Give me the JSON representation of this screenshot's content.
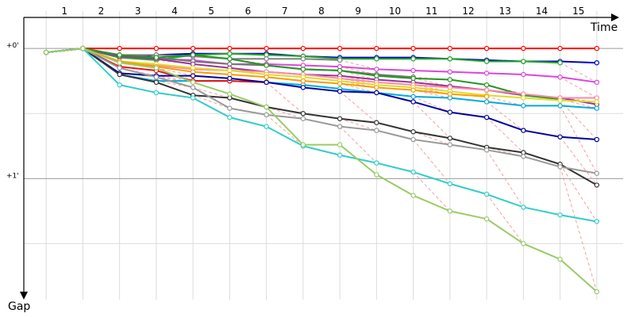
{
  "chart_data": {
    "type": "line",
    "xlabel": "Time",
    "ylabel": "Gap",
    "x_ticks": [
      "1",
      "2",
      "3",
      "4",
      "5",
      "6",
      "7",
      "8",
      "9",
      "10",
      "11",
      "12",
      "13",
      "14",
      "15"
    ],
    "y_tick_labels": [
      {
        "label": "+0'",
        "value": 0
      },
      {
        "label": "+1'",
        "value": 1
      }
    ],
    "xlim": [
      0.5,
      16.5
    ],
    "ylim": [
      -0.08,
      1.93
    ],
    "grid": true,
    "series": [
      {
        "color": "#ff0000",
        "points": [
          [
            1,
            0.03
          ],
          [
            2,
            0
          ],
          [
            3,
            0
          ],
          [
            4,
            0
          ],
          [
            5,
            0
          ],
          [
            6,
            0
          ],
          [
            7,
            0
          ],
          [
            8,
            0
          ],
          [
            9,
            0
          ],
          [
            10,
            0
          ],
          [
            11,
            0
          ],
          [
            12,
            0
          ],
          [
            13,
            0
          ],
          [
            14,
            0
          ],
          [
            15,
            0
          ],
          [
            16,
            0
          ]
        ]
      },
      {
        "color": "#0000cc",
        "points": [
          [
            1,
            0.03
          ],
          [
            2,
            0
          ],
          [
            3,
            0.07
          ],
          [
            4,
            0.05
          ],
          [
            5,
            0.04
          ],
          [
            6,
            0.04
          ],
          [
            7,
            0.04
          ],
          [
            8,
            0.06
          ],
          [
            9,
            0.07
          ],
          [
            10,
            0.07
          ],
          [
            11,
            0.07
          ],
          [
            12,
            0.08
          ],
          [
            13,
            0.09
          ],
          [
            14,
            0.1
          ],
          [
            15,
            0.1
          ],
          [
            16,
            0.11
          ]
        ]
      },
      {
        "color": "#22aa22",
        "points": [
          [
            1,
            0.03
          ],
          [
            2,
            0
          ],
          [
            3,
            0.07
          ],
          [
            4,
            0.09
          ],
          [
            5,
            0.05
          ],
          [
            6,
            0.04
          ],
          [
            7,
            0.05
          ],
          [
            8,
            0.06
          ],
          [
            9,
            0.08
          ],
          [
            10,
            0.08
          ],
          [
            11,
            0.08
          ],
          [
            12,
            0.08
          ],
          [
            13,
            0.1
          ],
          [
            14,
            0.1
          ],
          [
            15,
            0.11
          ]
        ]
      },
      {
        "color": "#808080",
        "points": [
          [
            1,
            0.03
          ],
          [
            2,
            0
          ],
          [
            3,
            0.05
          ],
          [
            4,
            0.05
          ],
          [
            5,
            0.06
          ],
          [
            6,
            0.08
          ],
          [
            7,
            0.08
          ],
          [
            8,
            0.08
          ],
          [
            9,
            0.09
          ]
        ]
      },
      {
        "color": "#dd44dd",
        "points": [
          [
            1,
            0.03
          ],
          [
            2,
            0
          ],
          [
            3,
            0.06
          ],
          [
            4,
            0.08
          ],
          [
            5,
            0.09
          ],
          [
            6,
            0.12
          ],
          [
            7,
            0.12
          ],
          [
            8,
            0.13
          ],
          [
            9,
            0.14
          ],
          [
            10,
            0.16
          ],
          [
            11,
            0.17
          ],
          [
            12,
            0.18
          ],
          [
            13,
            0.19
          ],
          [
            14,
            0.2
          ],
          [
            15,
            0.22
          ],
          [
            16,
            0.26
          ]
        ]
      },
      {
        "color": "#777777",
        "points": [
          [
            1,
            0.03
          ],
          [
            2,
            0
          ],
          [
            3,
            0.05
          ],
          [
            4,
            0.07
          ],
          [
            5,
            0.1
          ],
          [
            6,
            0.12
          ],
          [
            7,
            0.13
          ],
          [
            8,
            0.16
          ],
          [
            9,
            0.17
          ],
          [
            10,
            0.2
          ],
          [
            11,
            0.22
          ]
        ]
      },
      {
        "color": "#993399",
        "points": [
          [
            1,
            0.03
          ],
          [
            2,
            0
          ],
          [
            3,
            0.06
          ],
          [
            4,
            0.08
          ],
          [
            5,
            0.12
          ],
          [
            6,
            0.15
          ],
          [
            7,
            0.18
          ],
          [
            8,
            0.2
          ],
          [
            9,
            0.21
          ],
          [
            10,
            0.24
          ],
          [
            11,
            0.26
          ],
          [
            12,
            0.29
          ],
          [
            13,
            0.32
          ],
          [
            14,
            0.36
          ],
          [
            15,
            0.38
          ],
          [
            16,
            0.43
          ]
        ]
      },
      {
        "color": "#229922",
        "points": [
          [
            1,
            0.03
          ],
          [
            2,
            0
          ],
          [
            3,
            0.05
          ],
          [
            4,
            0.07
          ],
          [
            5,
            0.05
          ],
          [
            6,
            0.08
          ],
          [
            7,
            0.13
          ],
          [
            8,
            0.16
          ],
          [
            9,
            0.17
          ],
          [
            10,
            0.21
          ],
          [
            11,
            0.23
          ],
          [
            12,
            0.24
          ],
          [
            13,
            0.28
          ],
          [
            14,
            0.36
          ],
          [
            15,
            0.39
          ]
        ]
      },
      {
        "color": "#ff88aa",
        "points": [
          [
            1,
            0.03
          ],
          [
            2,
            0
          ],
          [
            3,
            0.1
          ],
          [
            4,
            0.13
          ],
          [
            5,
            0.16
          ],
          [
            6,
            0.17
          ],
          [
            7,
            0.18
          ],
          [
            8,
            0.2
          ],
          [
            9,
            0.23
          ],
          [
            10,
            0.26
          ],
          [
            11,
            0.28
          ],
          [
            12,
            0.3
          ],
          [
            13,
            0.32
          ],
          [
            14,
            0.35
          ],
          [
            15,
            0.38
          ],
          [
            16,
            0.38
          ]
        ]
      },
      {
        "color": "#00aadd",
        "points": [
          [
            1,
            0.03
          ],
          [
            2,
            0
          ],
          [
            3,
            0.2
          ],
          [
            4,
            0.25
          ],
          [
            5,
            0.25
          ],
          [
            6,
            0.25
          ],
          [
            7,
            0.26
          ],
          [
            8,
            0.28
          ],
          [
            9,
            0.31
          ],
          [
            10,
            0.34
          ],
          [
            11,
            0.37
          ],
          [
            12,
            0.38
          ],
          [
            13,
            0.41
          ],
          [
            14,
            0.44
          ],
          [
            15,
            0.44
          ],
          [
            16,
            0.46
          ]
        ]
      },
      {
        "color": "#dddd22",
        "points": [
          [
            1,
            0.03
          ],
          [
            2,
            0
          ],
          [
            3,
            0.1
          ],
          [
            4,
            0.12
          ],
          [
            5,
            0.15
          ],
          [
            6,
            0.17
          ],
          [
            7,
            0.2
          ],
          [
            8,
            0.22
          ],
          [
            9,
            0.25
          ],
          [
            10,
            0.28
          ],
          [
            11,
            0.3
          ],
          [
            12,
            0.33
          ],
          [
            13,
            0.36
          ],
          [
            14,
            0.38
          ],
          [
            15,
            0.4
          ],
          [
            16,
            0.41
          ]
        ]
      },
      {
        "color": "#ff9900",
        "points": [
          [
            1,
            0.03
          ],
          [
            2,
            0
          ],
          [
            3,
            0.1
          ],
          [
            4,
            0.14
          ],
          [
            5,
            0.18
          ],
          [
            6,
            0.2
          ],
          [
            7,
            0.22
          ],
          [
            8,
            0.25
          ],
          [
            9,
            0.27
          ],
          [
            10,
            0.3
          ],
          [
            11,
            0.32
          ],
          [
            12,
            0.35
          ],
          [
            13,
            0.37
          ]
        ]
      },
      {
        "color": "#ee1111",
        "points": [
          [
            1,
            0.03
          ],
          [
            2,
            0
          ],
          [
            3,
            0.14
          ],
          [
            4,
            0.17
          ],
          [
            5,
            0.25
          ],
          [
            6,
            0.25
          ],
          [
            7,
            0.26
          ]
        ]
      },
      {
        "color": "#000099",
        "points": [
          [
            1,
            0.03
          ],
          [
            2,
            0
          ],
          [
            3,
            0.19
          ],
          [
            4,
            0.21
          ],
          [
            5,
            0.21
          ],
          [
            6,
            0.23
          ],
          [
            7,
            0.26
          ],
          [
            8,
            0.3
          ],
          [
            9,
            0.33
          ],
          [
            10,
            0.34
          ],
          [
            11,
            0.41
          ],
          [
            12,
            0.49
          ],
          [
            13,
            0.53
          ],
          [
            14,
            0.63
          ],
          [
            15,
            0.68
          ],
          [
            16,
            0.7
          ]
        ]
      },
      {
        "color": "#333333",
        "points": [
          [
            1,
            0.03
          ],
          [
            2,
            0
          ],
          [
            3,
            0.2
          ],
          [
            4,
            0.26
          ],
          [
            5,
            0.36
          ],
          [
            6,
            0.38
          ],
          [
            7,
            0.45
          ],
          [
            8,
            0.5
          ],
          [
            9,
            0.54
          ],
          [
            10,
            0.57
          ],
          [
            11,
            0.64
          ],
          [
            12,
            0.69
          ],
          [
            13,
            0.76
          ],
          [
            14,
            0.8
          ],
          [
            15,
            0.89
          ],
          [
            16,
            1.05
          ]
        ]
      },
      {
        "color": "#999999",
        "points": [
          [
            1,
            0.03
          ],
          [
            2,
            0
          ],
          [
            3,
            0.15
          ],
          [
            4,
            0.22
          ],
          [
            5,
            0.3
          ],
          [
            6,
            0.46
          ],
          [
            7,
            0.51
          ],
          [
            8,
            0.54
          ],
          [
            9,
            0.6
          ],
          [
            10,
            0.63
          ],
          [
            11,
            0.7
          ],
          [
            12,
            0.74
          ],
          [
            13,
            0.78
          ],
          [
            14,
            0.83
          ],
          [
            15,
            0.91
          ],
          [
            16,
            0.96
          ]
        ]
      },
      {
        "color": "#33cccc",
        "points": [
          [
            1,
            0.03
          ],
          [
            2,
            0
          ],
          [
            3,
            0.28
          ],
          [
            4,
            0.34
          ],
          [
            5,
            0.38
          ],
          [
            6,
            0.53
          ],
          [
            7,
            0.6
          ],
          [
            8,
            0.75
          ],
          [
            9,
            0.82
          ],
          [
            10,
            0.88
          ],
          [
            11,
            0.95
          ],
          [
            12,
            1.04
          ],
          [
            13,
            1.12
          ],
          [
            14,
            1.22
          ],
          [
            15,
            1.28
          ],
          [
            16,
            1.33
          ]
        ]
      },
      {
        "color": "#99cc66",
        "points": [
          [
            1,
            0.03
          ],
          [
            2,
            0
          ],
          [
            3,
            0.11
          ],
          [
            4,
            0.15
          ],
          [
            5,
            0.26
          ],
          [
            6,
            0.35
          ],
          [
            7,
            0.45
          ],
          [
            8,
            0.74
          ],
          [
            9,
            0.74
          ],
          [
            10,
            0.97
          ],
          [
            11,
            1.13
          ],
          [
            12,
            1.25
          ],
          [
            13,
            1.31
          ],
          [
            14,
            1.5
          ],
          [
            15,
            1.62
          ],
          [
            16,
            1.87
          ]
        ]
      }
    ]
  }
}
